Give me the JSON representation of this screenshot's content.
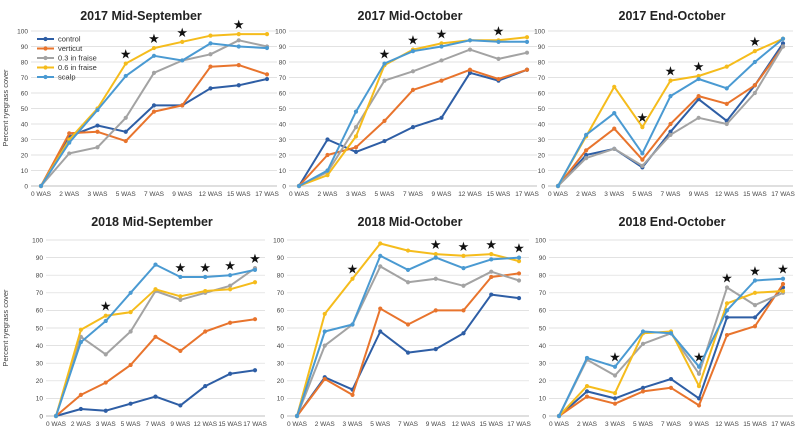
{
  "chart_data": [
    {
      "type": "line",
      "title": "2017 Mid-September",
      "ylabel": "Percent ryegrass cover",
      "ylim": [
        0,
        100
      ],
      "yticks": [
        0,
        10,
        20,
        30,
        40,
        50,
        60,
        70,
        80,
        90,
        100
      ],
      "categories": [
        "0 WAS",
        "2 WAS",
        "3 WAS",
        "5 WAS",
        "7 WAS",
        "9 WAS",
        "12 WAS",
        "15 WAS",
        "17 WAS"
      ],
      "series": [
        {
          "name": "control",
          "values": [
            0,
            32,
            39,
            35,
            52,
            52,
            63,
            65,
            69
          ]
        },
        {
          "name": "verticut",
          "values": [
            0,
            34,
            35,
            29,
            48,
            52,
            77,
            78,
            72
          ]
        },
        {
          "name": "0.3 in fraise",
          "values": [
            0,
            21,
            25,
            44,
            73,
            81,
            85,
            94,
            90
          ]
        },
        {
          "name": "0.6 in fraise",
          "values": [
            0,
            30,
            50,
            79,
            89,
            93,
            97,
            98,
            98
          ]
        },
        {
          "name": "scalp",
          "values": [
            0,
            28,
            49,
            71,
            84,
            81,
            92,
            90,
            89
          ]
        }
      ],
      "stars": [
        "5 WAS",
        "7 WAS",
        "9 WAS",
        "15 WAS"
      ],
      "legend": "top-left"
    },
    {
      "type": "line",
      "title": "2017 Mid-October",
      "ylim": [
        0,
        100
      ],
      "yticks": [
        0,
        10,
        20,
        30,
        40,
        50,
        60,
        70,
        80,
        90,
        100
      ],
      "categories": [
        "0 WAS",
        "2 WAS",
        "3 WAS",
        "5 WAS",
        "7 WAS",
        "9 WAS",
        "12 WAS",
        "15 WAS",
        "17 WAS"
      ],
      "series": [
        {
          "name": "control",
          "values": [
            0,
            30,
            22,
            29,
            38,
            44,
            73,
            68,
            75
          ]
        },
        {
          "name": "verticut",
          "values": [
            0,
            20,
            25,
            42,
            62,
            68,
            75,
            69,
            75
          ]
        },
        {
          "name": "0.3 in fraise",
          "values": [
            0,
            9,
            38,
            68,
            74,
            81,
            88,
            82,
            86
          ]
        },
        {
          "name": "0.6 in fraise",
          "values": [
            0,
            7,
            32,
            78,
            88,
            92,
            94,
            94,
            96
          ]
        },
        {
          "name": "scalp",
          "values": [
            0,
            10,
            48,
            79,
            87,
            90,
            94,
            93,
            93
          ]
        }
      ],
      "stars": [
        "5 WAS",
        "7 WAS",
        "9 WAS",
        "15 WAS"
      ]
    },
    {
      "type": "line",
      "title": "2017 End-October",
      "ylim": [
        0,
        100
      ],
      "yticks": [
        0,
        10,
        20,
        30,
        40,
        50,
        60,
        70,
        80,
        90,
        100
      ],
      "categories": [
        "0 WAS",
        "2 WAS",
        "3 WAS",
        "5 WAS",
        "7 WAS",
        "9 WAS",
        "12 WAS",
        "15 WAS",
        "17 WAS"
      ],
      "series": [
        {
          "name": "control",
          "values": [
            0,
            20,
            24,
            12,
            35,
            56,
            42,
            65,
            92
          ]
        },
        {
          "name": "verticut",
          "values": [
            0,
            23,
            37,
            17,
            40,
            58,
            53,
            65,
            90
          ]
        },
        {
          "name": "0.3 in fraise",
          "values": [
            0,
            18,
            24,
            13,
            33,
            44,
            40,
            60,
            90
          ]
        },
        {
          "name": "0.6 in fraise",
          "values": [
            0,
            32,
            64,
            38,
            68,
            71,
            77,
            87,
            95
          ]
        },
        {
          "name": "scalp",
          "values": [
            0,
            33,
            47,
            21,
            58,
            69,
            63,
            80,
            95
          ]
        }
      ],
      "stars": [
        "5 WAS",
        "7 WAS",
        "9 WAS",
        "15 WAS"
      ]
    },
    {
      "type": "line",
      "title": "2018 Mid-September",
      "ylabel": "Percent ryegrass cover",
      "ylim": [
        0,
        100
      ],
      "yticks": [
        0,
        10,
        20,
        30,
        40,
        50,
        60,
        70,
        80,
        90,
        100
      ],
      "categories": [
        "0 WAS",
        "2 WAS",
        "3 WAS",
        "5 WAS",
        "7 WAS",
        "9 WAS",
        "12 WAS",
        "15 WAS",
        "17 WAS"
      ],
      "series": [
        {
          "name": "control",
          "values": [
            0,
            4,
            3,
            7,
            11,
            6,
            17,
            24,
            26
          ]
        },
        {
          "name": "verticut",
          "values": [
            0,
            12,
            19,
            29,
            45,
            37,
            48,
            53,
            55
          ]
        },
        {
          "name": "0.3 in fraise",
          "values": [
            0,
            45,
            35,
            48,
            71,
            66,
            70,
            74,
            84
          ]
        },
        {
          "name": "0.6 in fraise",
          "values": [
            0,
            49,
            57,
            59,
            72,
            68,
            71,
            72,
            76
          ]
        },
        {
          "name": "scalp",
          "values": [
            0,
            42,
            54,
            70,
            86,
            79,
            79,
            80,
            83
          ]
        }
      ],
      "stars": [
        "3 WAS",
        "9 WAS",
        "12 WAS",
        "15 WAS",
        "17 WAS"
      ]
    },
    {
      "type": "line",
      "title": "2018 Mid-October",
      "ylim": [
        0,
        100
      ],
      "yticks": [
        0,
        10,
        20,
        30,
        40,
        50,
        60,
        70,
        80,
        90,
        100
      ],
      "categories": [
        "0 WAS",
        "2 WAS",
        "3 WAS",
        "5 WAS",
        "7 WAS",
        "9 WAS",
        "12 WAS",
        "15 WAS",
        "17 WAS"
      ],
      "series": [
        {
          "name": "control",
          "values": [
            0,
            22,
            15,
            48,
            36,
            38,
            47,
            69,
            67
          ]
        },
        {
          "name": "verticut",
          "values": [
            0,
            21,
            12,
            61,
            52,
            60,
            60,
            79,
            81
          ]
        },
        {
          "name": "0.3 in fraise",
          "values": [
            0,
            40,
            52,
            85,
            76,
            78,
            74,
            82,
            77
          ]
        },
        {
          "name": "0.6 in fraise",
          "values": [
            0,
            58,
            78,
            98,
            94,
            92,
            91,
            92,
            88
          ]
        },
        {
          "name": "scalp",
          "values": [
            0,
            48,
            52,
            91,
            83,
            90,
            84,
            89,
            90
          ]
        }
      ],
      "stars": [
        "3 WAS",
        "9 WAS",
        "12 WAS",
        "15 WAS",
        "17 WAS"
      ]
    },
    {
      "type": "line",
      "title": "2018 End-October",
      "ylim": [
        0,
        100
      ],
      "yticks": [
        0,
        10,
        20,
        30,
        40,
        50,
        60,
        70,
        80,
        90,
        100
      ],
      "categories": [
        "0 WAS",
        "2 WAS",
        "3 WAS",
        "5 WAS",
        "7 WAS",
        "9 WAS",
        "12 WAS",
        "15 WAS",
        "17 WAS"
      ],
      "series": [
        {
          "name": "control",
          "values": [
            0,
            14,
            10,
            16,
            21,
            10,
            56,
            56,
            73
          ]
        },
        {
          "name": "verticut",
          "values": [
            0,
            11,
            7,
            14,
            16,
            6,
            46,
            51,
            75
          ]
        },
        {
          "name": "0.3 in fraise",
          "values": [
            0,
            32,
            23,
            41,
            47,
            24,
            73,
            63,
            70
          ]
        },
        {
          "name": "0.6 in fraise",
          "values": [
            0,
            17,
            13,
            47,
            48,
            17,
            64,
            70,
            71
          ]
        },
        {
          "name": "scalp",
          "values": [
            0,
            33,
            28,
            48,
            47,
            28,
            60,
            77,
            78
          ]
        }
      ],
      "stars": [
        "3 WAS",
        "9 WAS",
        "12 WAS",
        "15 WAS",
        "17 WAS"
      ]
    }
  ],
  "colors": {
    "control": "#2e5ea5",
    "verticut": "#e8742d",
    "0.3 in fraise": "#a3a3a3",
    "0.6 in fraise": "#f5bc1c",
    "scalp": "#4a9ad2",
    "grid": "#d9d9d9",
    "axis": "#bfbfbf"
  },
  "star_symbol": "★"
}
